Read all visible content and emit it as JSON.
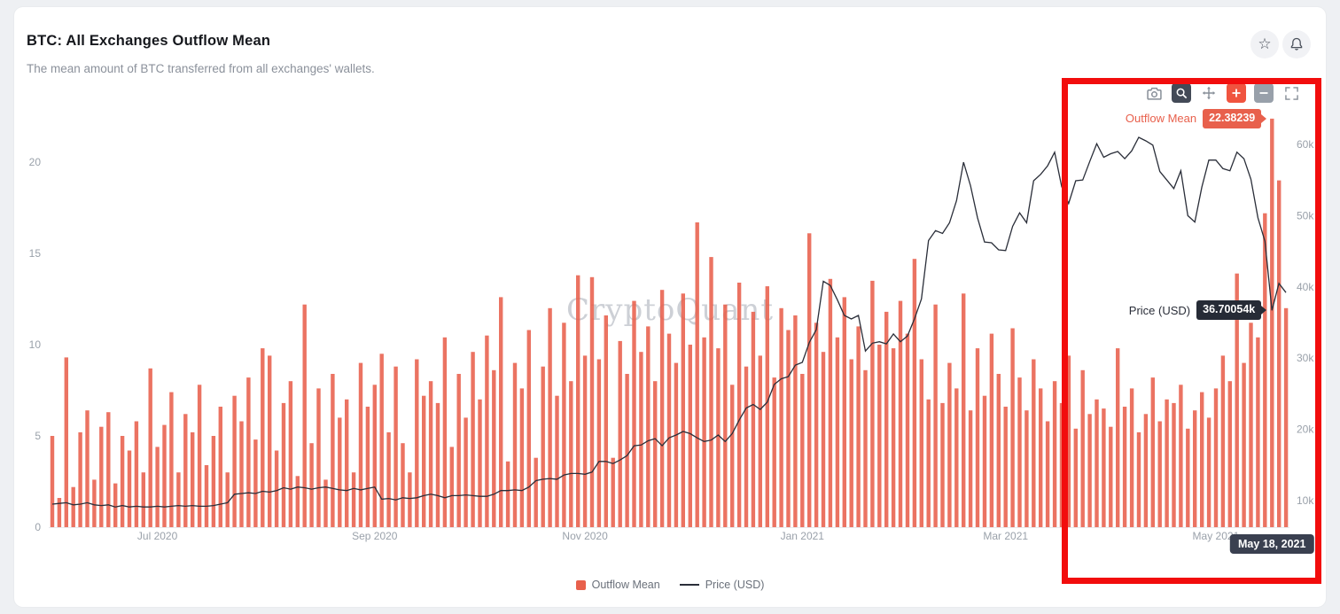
{
  "header": {
    "title": "BTC: All Exchanges Outflow Mean",
    "subtitle": "The mean amount of BTC transferred from all exchanges' wallets.",
    "actions": [
      {
        "name": "favorite",
        "icon": "star-icon",
        "glyph": "☆"
      },
      {
        "name": "alerts",
        "icon": "bell-icon"
      }
    ]
  },
  "modebar": [
    {
      "name": "camera",
      "icon": "camera-icon"
    },
    {
      "name": "zoom-select",
      "icon": "magnifier-icon",
      "active": true
    },
    {
      "name": "pan",
      "icon": "pan-arrows-icon"
    },
    {
      "name": "zoom-in",
      "icon": "plus-icon",
      "accent": true
    },
    {
      "name": "zoom-out",
      "icon": "minus-icon"
    },
    {
      "name": "reset-axes",
      "icon": "expand-corners-icon"
    }
  ],
  "watermark": "CryptoQuant",
  "tooltips": {
    "outflow_label": "Outflow Mean",
    "outflow_value": "22.38239",
    "price_label": "Price (USD)",
    "price_value": "36.70054k",
    "date": "May 18, 2021"
  },
  "legend": [
    {
      "label": "Outflow Mean",
      "swatch": "square",
      "color": "#E8604C"
    },
    {
      "label": "Price (USD)",
      "swatch": "line",
      "color": "#2A2E39"
    }
  ],
  "annotation": {
    "type": "highlight-rectangle",
    "color": "#F20D0D"
  },
  "chart_data": {
    "type": "bar+line",
    "title": "BTC: All Exchanges Outflow Mean",
    "grid": false,
    "legend_position": "bottom-center",
    "x": {
      "start": "Jun 2020",
      "end": "May 2021",
      "ticks": [
        {
          "label": "Jul 2020",
          "index": 15
        },
        {
          "label": "Sep 2020",
          "index": 46
        },
        {
          "label": "Nov 2020",
          "index": 76
        },
        {
          "label": "Jan 2021",
          "index": 107
        },
        {
          "label": "Mar 2021",
          "index": 136
        },
        {
          "label": "May 2021",
          "index": 166
        }
      ]
    },
    "y_left": {
      "ticks": [
        0,
        5,
        10,
        15,
        20
      ],
      "range": [
        0,
        23.6
      ]
    },
    "y_right": {
      "ticks": [
        "10k",
        "20k",
        "30k",
        "40k",
        "50k",
        "60k"
      ],
      "unit": "USD"
    },
    "highlighted_point": {
      "date": "May 18, 2021",
      "outflow_mean": 22.38239,
      "price_usd_k": 36.70054
    },
    "series": [
      {
        "name": "Outflow Mean",
        "type": "bar",
        "axis": "left",
        "color": "#E8604C",
        "values": [
          5.0,
          1.6,
          9.3,
          2.2,
          5.2,
          6.4,
          2.6,
          5.5,
          6.3,
          2.4,
          5.0,
          4.2,
          5.8,
          3.0,
          8.7,
          4.4,
          5.6,
          7.4,
          3.0,
          6.2,
          5.2,
          7.8,
          3.4,
          5.0,
          6.6,
          3.0,
          7.2,
          5.8,
          8.2,
          4.8,
          9.8,
          9.4,
          4.2,
          6.8,
          8.0,
          2.8,
          12.2,
          4.6,
          7.6,
          2.6,
          8.4,
          6.0,
          7.0,
          3.0,
          9.0,
          6.6,
          7.8,
          9.5,
          5.2,
          8.8,
          4.6,
          3.0,
          9.2,
          7.2,
          8.0,
          6.8,
          10.4,
          4.4,
          8.4,
          6.0,
          9.6,
          7.0,
          10.5,
          8.6,
          12.6,
          3.6,
          9.0,
          7.6,
          10.8,
          3.8,
          8.8,
          12.0,
          7.2,
          11.2,
          8.0,
          13.8,
          9.4,
          13.7,
          9.2,
          11.6,
          3.8,
          10.2,
          8.4,
          12.4,
          9.6,
          11.0,
          8.0,
          13.0,
          10.6,
          9.0,
          12.8,
          10.0,
          16.7,
          10.4,
          14.8,
          9.8,
          12.2,
          7.8,
          13.4,
          8.8,
          11.8,
          9.4,
          13.2,
          8.2,
          12.0,
          10.8,
          11.6,
          8.4,
          16.1,
          11.2,
          9.6,
          13.6,
          10.4,
          12.6,
          9.2,
          11.0,
          8.6,
          13.5,
          10.0,
          11.8,
          9.8,
          12.4,
          10.6,
          14.7,
          9.2,
          7.0,
          12.2,
          6.8,
          9.0,
          7.6,
          12.8,
          6.4,
          9.8,
          7.2,
          10.6,
          8.4,
          6.6,
          10.9,
          8.2,
          6.4,
          9.2,
          7.6,
          5.8,
          8.0,
          6.8,
          9.4,
          5.4,
          8.6,
          6.2,
          7.0,
          6.5,
          5.5,
          9.8,
          6.6,
          7.6,
          5.2,
          6.2,
          8.2,
          5.8,
          7.0,
          6.8,
          7.8,
          5.4,
          6.4,
          7.4,
          6.0,
          7.6,
          9.4,
          8.0,
          13.9,
          9.0,
          11.2,
          10.4,
          17.2,
          22.38239,
          19.0,
          12.0
        ]
      },
      {
        "name": "Price (USD)",
        "type": "line",
        "axis": "right",
        "color": "#2A2E39",
        "unit": "thousand USD",
        "values": [
          9.5,
          9.6,
          9.7,
          9.4,
          9.5,
          9.7,
          9.4,
          9.3,
          9.4,
          9.1,
          9.3,
          9.1,
          9.2,
          9.1,
          9.1,
          9.2,
          9.1,
          9.2,
          9.3,
          9.2,
          9.3,
          9.2,
          9.2,
          9.3,
          9.5,
          9.7,
          10.9,
          11.0,
          11.1,
          11.0,
          11.3,
          11.2,
          11.4,
          11.8,
          11.6,
          11.9,
          11.8,
          11.6,
          11.8,
          11.9,
          11.7,
          11.5,
          11.4,
          11.7,
          11.5,
          11.7,
          11.9,
          10.2,
          10.3,
          10.1,
          10.4,
          10.3,
          10.4,
          10.7,
          10.9,
          10.7,
          10.4,
          10.7,
          10.7,
          10.8,
          10.7,
          10.6,
          10.6,
          10.9,
          11.4,
          11.4,
          11.5,
          11.4,
          11.9,
          12.8,
          13.0,
          13.1,
          13.0,
          13.6,
          13.8,
          13.8,
          13.7,
          14.0,
          15.5,
          15.5,
          15.2,
          15.7,
          16.3,
          17.7,
          17.8,
          18.4,
          18.7,
          17.7,
          18.8,
          19.2,
          19.7,
          19.4,
          18.8,
          18.3,
          18.5,
          19.2,
          18.3,
          19.4,
          21.3,
          23.0,
          23.5,
          22.8,
          23.8,
          26.3,
          27.1,
          27.4,
          29.0,
          29.4,
          32.2,
          34.0,
          40.8,
          40.2,
          38.2,
          36.0,
          35.5,
          36.0,
          31.0,
          32.1,
          32.3,
          32.0,
          33.4,
          32.3,
          33.1,
          35.5,
          38.3,
          46.5,
          47.9,
          47.5,
          49.0,
          52.1,
          57.5,
          54.2,
          49.7,
          46.3,
          46.2,
          45.2,
          45.1,
          48.5,
          50.4,
          49.0,
          54.9,
          55.8,
          57.0,
          58.9,
          54.1,
          51.7,
          54.9,
          55.0,
          57.6,
          60.1,
          58.2,
          58.7,
          59.0,
          58.0,
          59.1,
          61.0,
          60.5,
          59.9,
          56.2,
          55.0,
          53.8,
          56.3,
          50.0,
          49.1,
          54.0,
          57.8,
          57.8,
          56.6,
          56.3,
          58.9,
          58.0,
          55.1,
          49.7,
          46.4,
          36.70054,
          40.5,
          39.2
        ]
      }
    ]
  }
}
